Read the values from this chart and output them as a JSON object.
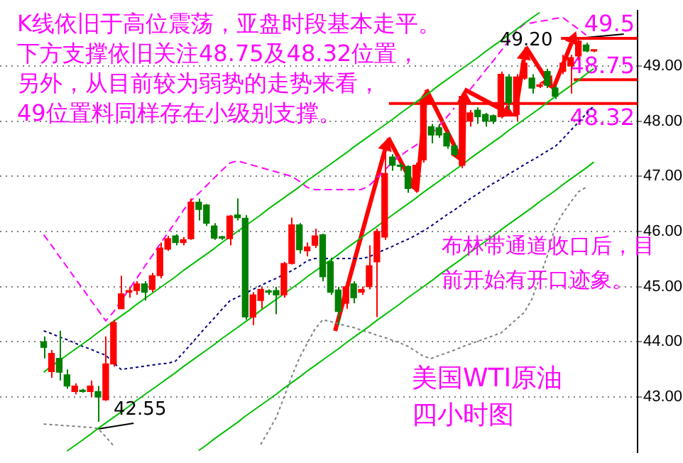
{
  "chart_data": {
    "type": "candlestick",
    "title": "美国WTI原油四小时图",
    "annotations": [
      "K线依旧于高位震荡，亚盘时段基本走平。",
      "下方支撑依旧关注48.75及48.32位置，",
      "另外，从目前较为弱势的走势来看，",
      "49位置料同样存在小级别支撑。",
      "布林带通道收口后，目",
      "前开始有开口迹象。",
      "42.55",
      "49.20"
    ],
    "categories": [
      null,
      null,
      null,
      null,
      null,
      null,
      null,
      null,
      null,
      null,
      null,
      null,
      null,
      null,
      null,
      null,
      null,
      null,
      null,
      null,
      null,
      null,
      null,
      null,
      null,
      null,
      null,
      null,
      null,
      null,
      null,
      null,
      null,
      null,
      null,
      null,
      null,
      null,
      null,
      null,
      null,
      null,
      null,
      null,
      null,
      null,
      null,
      null,
      null,
      null,
      null,
      null,
      null,
      null,
      null,
      null,
      null,
      null,
      null,
      null,
      null,
      null,
      null,
      null,
      null,
      null,
      null,
      null,
      null,
      null,
      null,
      null
    ],
    "ohlc": [
      [
        44.0,
        44.1,
        43.7,
        43.9
      ],
      [
        43.46,
        43.85,
        43.35,
        43.79
      ],
      [
        43.7,
        44.2,
        43.3,
        43.45
      ],
      [
        43.4,
        43.5,
        43.15,
        43.2
      ],
      [
        43.1,
        43.25,
        43.05,
        43.2
      ],
      [
        43.12,
        43.15,
        43.08,
        43.1
      ],
      [
        43.1,
        43.3,
        43.0,
        43.2
      ],
      [
        43.1,
        43.2,
        42.55,
        43.0
      ],
      [
        42.95,
        44.1,
        42.93,
        43.6
      ],
      [
        43.6,
        44.4,
        43.55,
        44.35
      ],
      [
        44.6,
        45.2,
        44.6,
        44.87
      ],
      [
        44.9,
        45.0,
        44.8,
        44.93
      ],
      [
        44.93,
        45.1,
        44.85,
        45.05
      ],
      [
        45.05,
        45.1,
        44.75,
        44.9
      ],
      [
        44.95,
        45.25,
        44.9,
        45.2
      ],
      [
        45.2,
        45.8,
        45.15,
        45.7
      ],
      [
        45.68,
        45.92,
        45.65,
        45.87
      ],
      [
        45.92,
        45.95,
        45.75,
        45.8
      ],
      [
        45.8,
        45.9,
        45.75,
        45.85
      ],
      [
        45.87,
        46.6,
        45.85,
        46.53
      ],
      [
        46.53,
        46.6,
        46.2,
        46.4
      ],
      [
        46.48,
        46.5,
        46.1,
        46.15
      ],
      [
        46.1,
        46.15,
        45.85,
        45.88
      ],
      [
        45.9,
        45.92,
        45.85,
        45.88
      ],
      [
        45.87,
        46.3,
        45.75,
        46.28
      ],
      [
        46.3,
        46.6,
        46.2,
        46.25
      ],
      [
        46.24,
        46.3,
        44.4,
        44.45
      ],
      [
        44.45,
        44.9,
        44.3,
        44.85
      ],
      [
        44.75,
        45.0,
        44.6,
        44.95
      ],
      [
        44.92,
        44.95,
        44.85,
        44.9
      ],
      [
        44.93,
        45.0,
        44.5,
        44.85
      ],
      [
        44.85,
        45.45,
        44.8,
        45.42
      ],
      [
        45.42,
        46.25,
        45.4,
        46.12
      ],
      [
        46.12,
        46.15,
        45.6,
        45.67
      ],
      [
        45.65,
        45.8,
        45.55,
        45.72
      ],
      [
        45.75,
        46.05,
        45.7,
        45.92
      ],
      [
        45.94,
        45.96,
        45.1,
        45.18
      ],
      [
        45.45,
        45.5,
        44.85,
        44.9
      ],
      [
        44.94,
        45.0,
        44.3,
        44.55
      ],
      [
        44.7,
        45.1,
        44.6,
        45.0
      ],
      [
        45.05,
        45.1,
        44.7,
        44.8
      ],
      [
        44.9,
        45.0,
        44.85,
        44.95
      ],
      [
        45.0,
        45.75,
        44.95,
        45.38
      ],
      [
        45.45,
        46.05,
        44.45,
        46.0
      ],
      [
        45.9,
        47.6,
        45.85,
        47.05
      ],
      [
        47.35,
        47.4,
        47.1,
        47.2
      ],
      [
        47.2,
        47.25,
        47.1,
        47.18
      ],
      [
        47.18,
        47.2,
        46.7,
        46.78
      ],
      [
        46.78,
        47.25,
        46.7,
        47.2
      ],
      [
        47.3,
        48.4,
        47.25,
        48.35
      ],
      [
        47.9,
        47.95,
        47.6,
        47.75
      ],
      [
        47.88,
        47.95,
        47.7,
        47.75
      ],
      [
        47.78,
        47.82,
        47.5,
        47.55
      ],
      [
        47.55,
        47.6,
        47.35,
        47.4
      ],
      [
        47.2,
        48.5,
        47.15,
        48.45
      ],
      [
        48.0,
        48.2,
        47.9,
        48.15
      ],
      [
        48.2,
        48.25,
        47.95,
        48.08
      ],
      [
        48.12,
        48.15,
        47.9,
        48.0
      ],
      [
        48.1,
        48.12,
        47.95,
        48.0
      ],
      [
        48.08,
        48.9,
        48.05,
        48.85
      ],
      [
        48.8,
        48.85,
        48.2,
        48.33
      ],
      [
        48.12,
        48.85,
        48.0,
        48.8
      ],
      [
        48.78,
        49.2,
        48.75,
        49.05
      ],
      [
        48.78,
        48.85,
        48.5,
        48.6
      ],
      [
        48.63,
        48.7,
        48.6,
        48.66
      ],
      [
        48.9,
        48.95,
        48.6,
        48.65
      ],
      [
        48.6,
        48.65,
        48.4,
        48.45
      ],
      [
        48.9,
        49.2,
        48.85,
        49.05
      ],
      [
        49.0,
        49.2,
        48.5,
        49.15
      ],
      [
        49.18,
        49.5,
        49.1,
        49.45
      ],
      [
        49.38,
        49.42,
        49.25,
        49.27
      ],
      [
        49.27,
        49.3,
        49.25,
        49.27
      ]
    ],
    "series": [
      {
        "type": "line",
        "color": "#00c000",
        "line_style": "solid",
        "values": [
          43.45,
          43.56,
          43.66,
          43.76,
          43.86,
          43.96,
          44.06,
          44.17,
          44.27,
          44.37,
          44.47,
          44.57,
          44.68,
          44.78,
          44.88,
          44.98,
          45.08,
          45.18,
          45.29,
          45.39,
          45.49,
          45.59,
          45.69,
          45.8,
          45.9,
          46.0,
          46.1,
          46.2,
          46.3,
          46.41,
          46.51,
          46.61,
          46.71,
          46.81,
          46.92,
          47.02,
          47.12,
          47.22,
          47.32,
          47.42,
          47.53,
          47.63,
          47.73,
          47.83,
          47.93,
          48.03,
          48.14,
          48.24,
          48.34,
          48.44,
          48.54,
          48.65,
          48.75,
          48.85,
          48.95,
          49.05,
          49.15,
          49.26,
          49.36,
          49.46,
          49.56,
          49.66,
          49.77,
          49.87,
          49.97,
          null,
          null,
          null,
          null,
          null,
          null,
          null
        ]
      },
      {
        "type": "line",
        "color": "#00c000",
        "line_style": "solid",
        "values": [
          null,
          null,
          null,
          42.02,
          42.12,
          42.22,
          42.32,
          42.43,
          42.53,
          42.63,
          42.73,
          42.83,
          42.94,
          43.04,
          43.14,
          43.24,
          43.34,
          43.44,
          43.55,
          43.65,
          43.75,
          43.85,
          43.95,
          44.06,
          44.16,
          44.26,
          44.36,
          44.46,
          44.57,
          44.67,
          44.77,
          44.87,
          44.97,
          45.07,
          45.18,
          45.28,
          45.38,
          45.48,
          45.58,
          45.69,
          45.79,
          45.89,
          45.99,
          46.09,
          46.2,
          46.3,
          46.4,
          46.5,
          46.6,
          46.71,
          46.81,
          46.91,
          47.01,
          47.11,
          47.21,
          47.32,
          47.42,
          47.52,
          47.62,
          47.72,
          47.83,
          47.93,
          48.03,
          48.13,
          48.23,
          48.34,
          48.44,
          48.54,
          48.64,
          48.74,
          48.85,
          48.95
        ]
      },
      {
        "type": "line",
        "color": "#00c000",
        "line_style": "solid",
        "values": [
          null,
          null,
          null,
          null,
          null,
          null,
          null,
          null,
          null,
          null,
          null,
          null,
          null,
          null,
          null,
          null,
          null,
          null,
          null,
          null,
          42.03,
          42.13,
          42.24,
          42.34,
          42.44,
          42.54,
          42.65,
          42.75,
          42.85,
          42.95,
          43.05,
          43.16,
          43.26,
          43.36,
          43.47,
          43.57,
          43.67,
          43.77,
          43.87,
          43.98,
          44.08,
          44.18,
          44.28,
          44.39,
          44.49,
          44.59,
          44.69,
          44.8,
          44.9,
          45.0,
          45.1,
          45.21,
          45.31,
          45.41,
          45.51,
          45.62,
          45.72,
          45.82,
          45.92,
          46.03,
          46.13,
          46.23,
          46.33,
          46.43,
          46.54,
          46.64,
          46.74,
          46.85,
          46.95,
          47.05,
          47.15,
          47.26
        ]
      },
      {
        "type": "line",
        "color": "#ff00ff",
        "line_style": "dashed",
        "values": [
          45.94,
          45.75,
          45.55,
          45.36,
          45.16,
          44.97,
          44.77,
          44.58,
          44.38,
          44.54,
          44.75,
          44.95,
          45.15,
          45.36,
          45.56,
          45.77,
          45.97,
          46.17,
          46.38,
          46.56,
          46.69,
          46.83,
          46.97,
          47.11,
          47.24,
          47.28,
          47.24,
          47.2,
          47.16,
          47.12,
          47.08,
          47.04,
          47.0,
          46.91,
          46.8,
          46.76,
          46.76,
          46.76,
          46.76,
          46.76,
          46.76,
          46.76,
          46.83,
          46.97,
          47.11,
          47.26,
          47.37,
          47.47,
          47.56,
          47.66,
          47.76,
          47.91,
          48.07,
          48.24,
          null,
          48.57,
          48.74,
          48.92,
          49.09,
          49.27,
          49.45,
          49.63,
          49.76,
          49.78,
          49.81,
          49.83,
          49.86,
          49.88,
          49.77,
          49.67,
          49.56,
          null
        ]
      },
      {
        "type": "line",
        "color": "#000080",
        "line_style": "dotted",
        "values": [
          44.2,
          44.15,
          44.09,
          44.04,
          43.98,
          43.92,
          43.87,
          43.81,
          43.76,
          43.62,
          43.5,
          43.52,
          43.54,
          43.56,
          43.58,
          43.6,
          43.61,
          43.65,
          43.8,
          43.96,
          44.12,
          44.28,
          44.43,
          44.59,
          44.74,
          44.81,
          44.88,
          44.95,
          45.02,
          45.09,
          45.15,
          45.22,
          45.29,
          45.37,
          45.47,
          45.51,
          45.51,
          45.51,
          45.51,
          45.51,
          45.51,
          45.51,
          45.54,
          45.61,
          45.67,
          45.73,
          45.8,
          45.86,
          45.93,
          46.01,
          46.1,
          46.2,
          46.3,
          46.39,
          46.49,
          46.59,
          46.68,
          46.78,
          46.87,
          46.95,
          47.04,
          47.12,
          47.21,
          47.29,
          47.37,
          47.46,
          47.54,
          47.68,
          47.83,
          47.98,
          48.13,
          48.28
        ]
      },
      {
        "type": "line",
        "color": "#808080",
        "line_style": "dotted",
        "values": [
          42.51,
          42.5,
          42.49,
          42.48,
          42.47,
          42.46,
          42.45,
          42.43,
          42.28,
          42.12,
          null,
          null,
          null,
          null,
          null,
          null,
          null,
          null,
          null,
          null,
          null,
          null,
          null,
          null,
          null,
          null,
          null,
          null,
          42.14,
          42.38,
          42.63,
          42.99,
          43.37,
          43.71,
          43.97,
          44.23,
          44.4,
          44.37,
          44.33,
          44.29,
          44.26,
          44.21,
          44.17,
          44.12,
          44.08,
          44.03,
          43.98,
          43.92,
          43.83,
          43.74,
          43.7,
          43.75,
          43.8,
          43.85,
          43.91,
          43.96,
          44.01,
          44.06,
          44.11,
          44.16,
          44.28,
          44.41,
          44.53,
          44.77,
          45.16,
          45.56,
          46.09,
          46.33,
          46.53,
          46.72,
          46.8,
          null
        ]
      }
    ],
    "ref_lines": [
      {
        "axis": "y",
        "value": 49.5,
        "label": "49.5",
        "color": "#ff0000"
      },
      {
        "axis": "y",
        "value": 48.75,
        "label": "48.75",
        "color": "#ff0000"
      },
      {
        "axis": "y",
        "value": 48.32,
        "label": "48.32",
        "color": "#ff0000"
      }
    ],
    "ylim": [
      42,
      50
    ],
    "yticks": [
      {
        "value": 43,
        "label": "43.00"
      },
      {
        "value": 44,
        "label": "44.00"
      },
      {
        "value": 45,
        "label": "45.00"
      },
      {
        "value": 46,
        "label": "46.00"
      },
      {
        "value": 47,
        "label": "47.00"
      },
      {
        "value": 48,
        "label": "48.00"
      },
      {
        "value": 49,
        "label": "49.00"
      }
    ],
    "grid": "y",
    "tick_labels": "y"
  }
}
